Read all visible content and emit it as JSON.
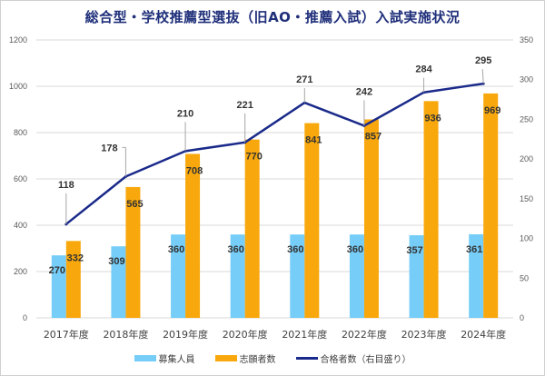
{
  "chart_data": {
    "type": "bar",
    "title": "総合型・学校推薦型選抜（旧AO・推薦入試）入試実施状況",
    "categories": [
      "2017年度",
      "2018年度",
      "2019年度",
      "2020年度",
      "2021年度",
      "2022年度",
      "2023年度",
      "2024年度"
    ],
    "series": [
      {
        "name": "募集人員",
        "type": "bar",
        "axis": "left",
        "color": "#75CDF8",
        "values": [
          270,
          309,
          360,
          360,
          360,
          360,
          357,
          361
        ]
      },
      {
        "name": "志願者数",
        "type": "bar",
        "axis": "left",
        "color": "#F8A80C",
        "values": [
          332,
          565,
          708,
          770,
          841,
          857,
          936,
          969
        ]
      },
      {
        "name": "合格者数（右目盛り）",
        "type": "line",
        "axis": "right",
        "color": "#1A2A8A",
        "values": [
          118,
          178,
          210,
          221,
          271,
          242,
          284,
          295
        ]
      }
    ],
    "left_axis": {
      "ylim": [
        0,
        1200
      ],
      "ticks": [
        "0",
        "200",
        "400",
        "600",
        "800",
        "1000",
        "1200"
      ]
    },
    "right_axis": {
      "ylim": [
        0,
        350
      ],
      "ticks": [
        "0",
        "50",
        "100",
        "150",
        "200",
        "250",
        "300",
        "350"
      ]
    },
    "xlabel": "",
    "ylabel": "",
    "grid": true,
    "legend_position": "bottom"
  }
}
